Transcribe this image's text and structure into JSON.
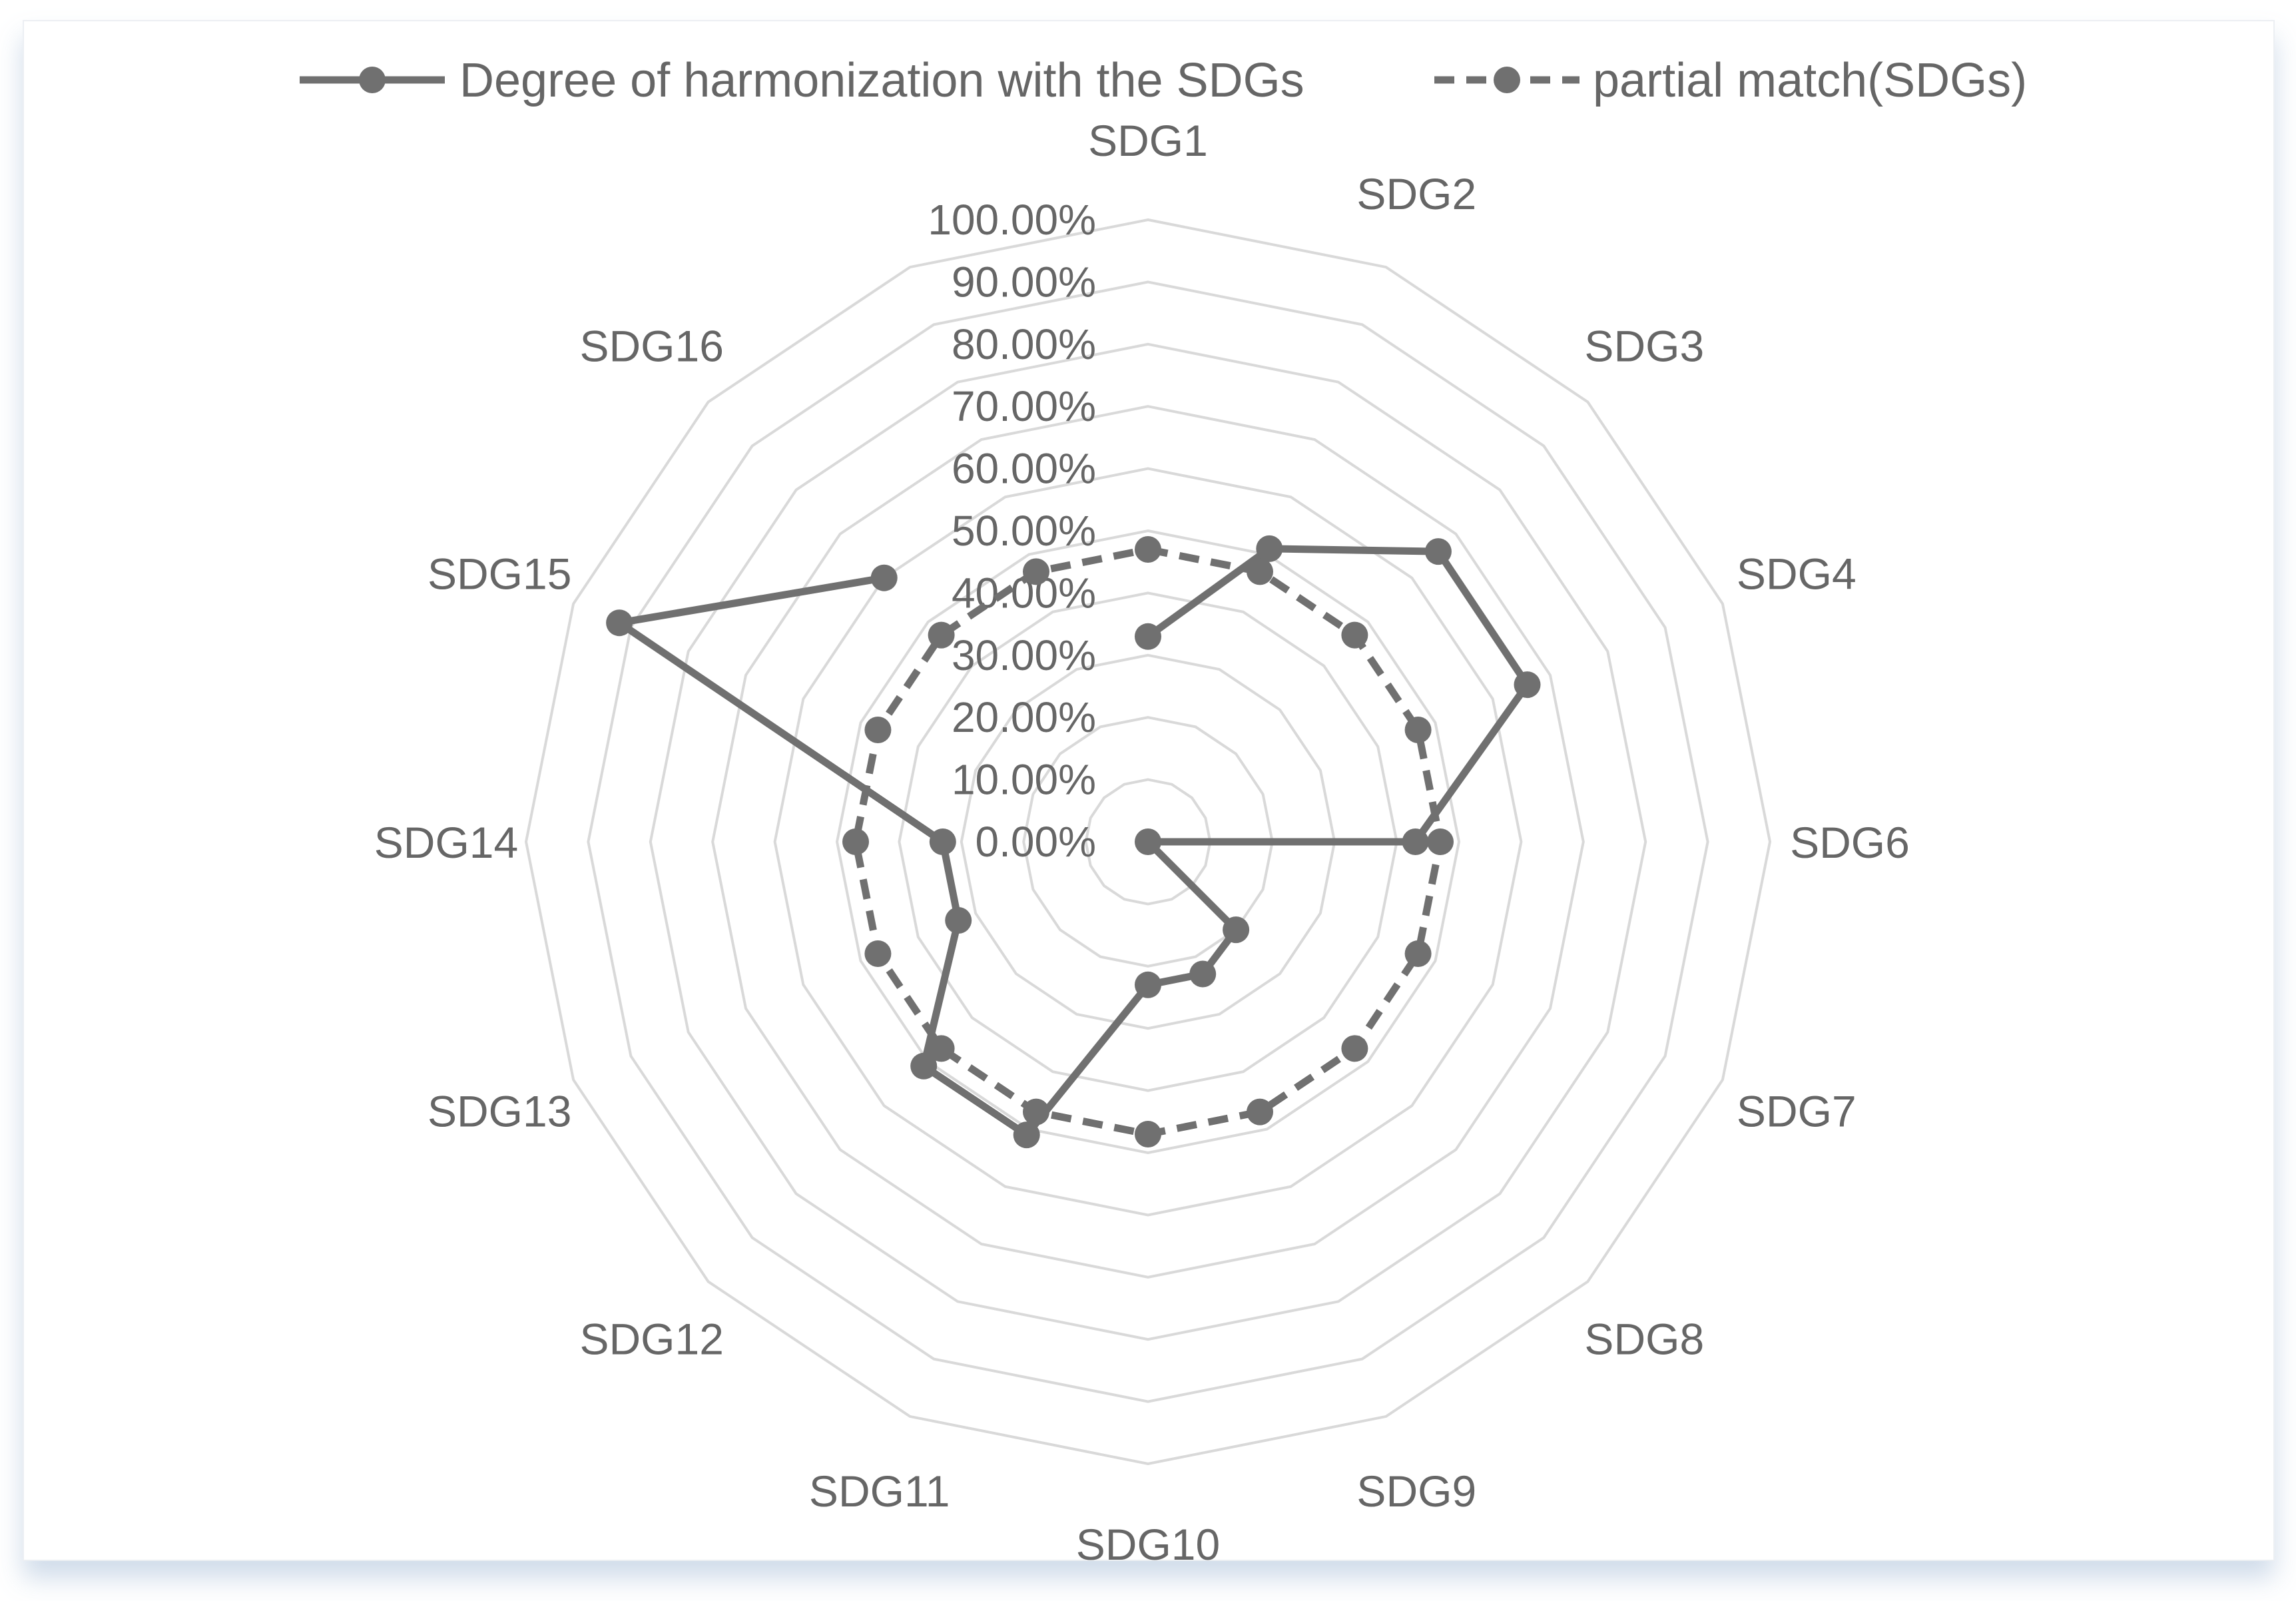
{
  "chart_data": {
    "type": "radar",
    "categories": [
      "SDG1",
      "SDG2",
      "SDG3",
      "SDG4",
      "SDG6",
      "SDG7",
      "SDG8",
      "SDG9",
      "SDG10",
      "SDG11",
      "SDG12",
      "SDG13",
      "SDG14",
      "SDG15",
      "SDG16",
      "(blank)"
    ],
    "category_labels_shown": [
      "SDG1",
      "SDG2",
      "SDG3",
      "SDG4",
      "SDG6",
      "SDG7",
      "SDG8",
      "SDG9",
      "SDG10",
      "SDG11",
      "SDG12",
      "SDG13",
      "SDG14",
      "SDG15",
      "SDG16"
    ],
    "series": [
      {
        "name": "Degree of harmonization with the SDGs",
        "style": "solid",
        "values": [
          0.33,
          0.51,
          0.66,
          0.66,
          0.43,
          0.0,
          0.2,
          0.23,
          0.23,
          0.51,
          0.51,
          0.33,
          0.33,
          0.92,
          0.6,
          null
        ]
      },
      {
        "name": "partial match(SDGs)",
        "style": "dashed",
        "values": [
          0.47,
          0.47,
          0.47,
          0.47,
          0.47,
          0.47,
          0.47,
          0.47,
          0.47,
          0.47,
          0.47,
          0.47,
          0.47,
          0.47,
          0.47,
          0.47
        ]
      }
    ],
    "tick_labels": [
      "0.00%",
      "10.00%",
      "20.00%",
      "30.00%",
      "40.00%",
      "50.00%",
      "60.00%",
      "70.00%",
      "80.00%",
      "90.00%",
      "100.00%"
    ],
    "range": [
      0,
      1
    ],
    "legend_position": "top",
    "grid": true,
    "line_color": "#707070",
    "grid_color": "#d9d9d9"
  }
}
